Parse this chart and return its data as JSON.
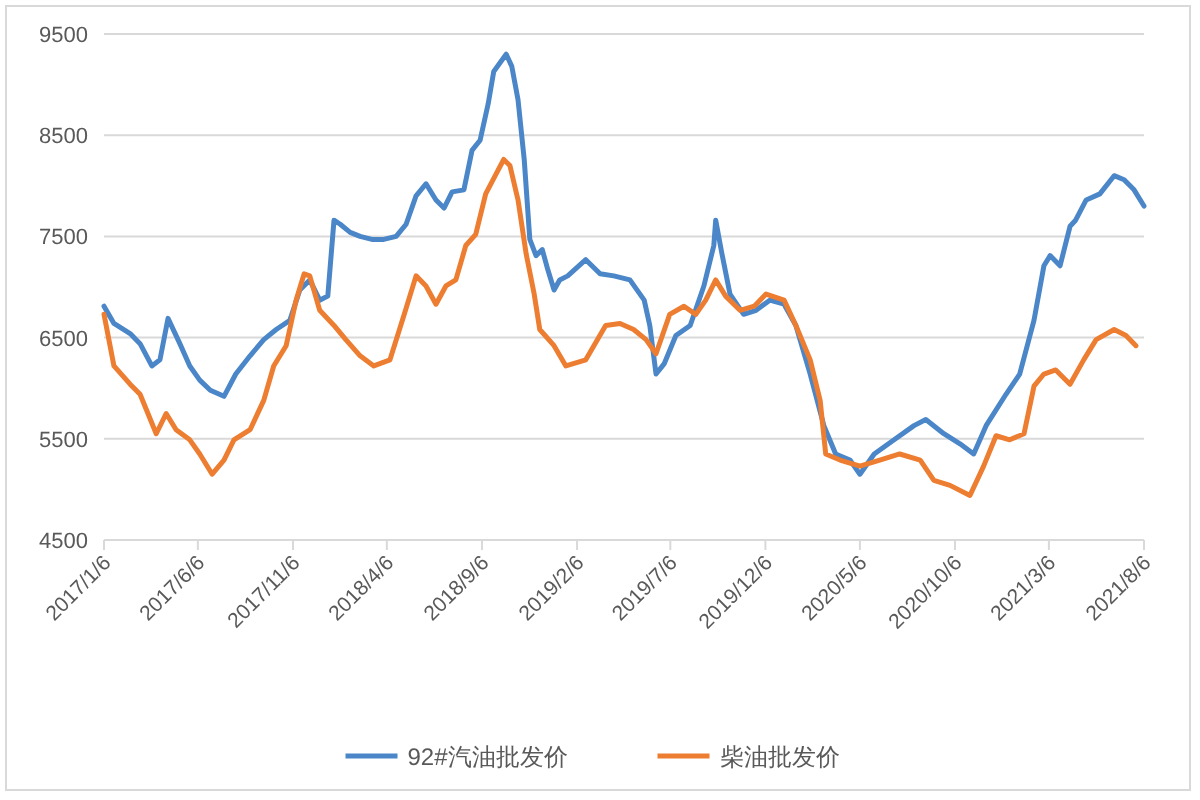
{
  "chart_data": {
    "type": "line",
    "ylim": [
      4500,
      9500
    ],
    "yticks": [
      4500,
      5500,
      6500,
      7500,
      8500,
      9500
    ],
    "xlim": [
      "2017-01-06",
      "2021-08-06"
    ],
    "xticks": [
      {
        "value": "2017-01-06",
        "label": "2017/1/6"
      },
      {
        "value": "2017-06-06",
        "label": "2017/6/6"
      },
      {
        "value": "2017-11-06",
        "label": "2017/11/6"
      },
      {
        "value": "2018-04-06",
        "label": "2018/4/6"
      },
      {
        "value": "2018-09-06",
        "label": "2018/9/6"
      },
      {
        "value": "2019-02-06",
        "label": "2019/2/6"
      },
      {
        "value": "2019-07-06",
        "label": "2019/7/6"
      },
      {
        "value": "2019-12-06",
        "label": "2019/12/6"
      },
      {
        "value": "2020-05-06",
        "label": "2020/5/6"
      },
      {
        "value": "2020-10-06",
        "label": "2020/10/6"
      },
      {
        "value": "2021-03-06",
        "label": "2021/3/6"
      },
      {
        "value": "2021-08-06",
        "label": "2021/8/6"
      }
    ],
    "grid": "y",
    "legend": "bottom",
    "marker": "none",
    "line_style": "solid",
    "series": [
      {
        "name": "92#汽油批发价",
        "color": "#4a86c8",
        "x": [
          "2017-01-06",
          "2017-01-22",
          "2017-02-17",
          "2017-03-05",
          "2017-03-24",
          "2017-04-06",
          "2017-04-19",
          "2017-05-08",
          "2017-05-24",
          "2017-06-09",
          "2017-06-26",
          "2017-07-18",
          "2017-08-06",
          "2017-08-29",
          "2017-09-20",
          "2017-10-10",
          "2017-11-01",
          "2017-11-17",
          "2017-12-03",
          "2017-12-19",
          "2018-01-01",
          "2018-01-11",
          "2018-01-21",
          "2018-02-06",
          "2018-02-22",
          "2018-03-13",
          "2018-04-01",
          "2018-04-21",
          "2018-05-07",
          "2018-05-23",
          "2018-06-08",
          "2018-06-24",
          "2018-07-07",
          "2018-07-20",
          "2018-08-08",
          "2018-08-21",
          "2018-09-03",
          "2018-09-16",
          "2018-09-25",
          "2018-10-08",
          "2018-10-15",
          "2018-10-24",
          "2018-11-03",
          "2018-11-13",
          "2018-11-22",
          "2018-12-02",
          "2018-12-12",
          "2018-12-21",
          "2018-12-31",
          "2019-01-09",
          "2019-01-22",
          "2019-02-20",
          "2019-03-15",
          "2019-04-06",
          "2019-05-02",
          "2019-05-25",
          "2019-06-03",
          "2019-06-13",
          "2019-06-26",
          "2019-07-15",
          "2019-08-07",
          "2019-08-29",
          "2019-09-14",
          "2019-09-17",
          "2019-09-27",
          "2019-10-10",
          "2019-11-01",
          "2019-11-21",
          "2019-12-13",
          "2020-01-05",
          "2020-01-24",
          "2020-02-16",
          "2020-03-09",
          "2020-03-28",
          "2020-04-20",
          "2020-05-06",
          "2020-05-29",
          "2020-06-30",
          "2020-08-01",
          "2020-08-20",
          "2020-09-18",
          "2020-10-14",
          "2020-11-05",
          "2020-11-25",
          "2020-12-27",
          "2021-01-18",
          "2021-02-10",
          "2021-02-26",
          "2021-03-08",
          "2021-03-24",
          "2021-04-09",
          "2021-04-18",
          "2021-05-05",
          "2021-05-27",
          "2021-06-19",
          "2021-07-05",
          "2021-07-21",
          "2021-08-06"
        ],
        "values": [
          6810,
          6640,
          6540,
          6440,
          6220,
          6280,
          6690,
          6440,
          6220,
          6080,
          5980,
          5920,
          6140,
          6320,
          6480,
          6580,
          6670,
          6970,
          7070,
          6870,
          6910,
          7660,
          7620,
          7540,
          7500,
          7470,
          7470,
          7500,
          7620,
          7900,
          8020,
          7860,
          7780,
          7940,
          7960,
          8350,
          8450,
          8810,
          9130,
          9240,
          9300,
          9180,
          8850,
          8260,
          7470,
          7310,
          7370,
          7170,
          6970,
          7070,
          7110,
          7270,
          7130,
          7110,
          7070,
          6870,
          6620,
          6140,
          6240,
          6520,
          6620,
          7010,
          7410,
          7660,
          7330,
          6930,
          6730,
          6770,
          6870,
          6830,
          6620,
          6140,
          5630,
          5350,
          5290,
          5150,
          5350,
          5490,
          5630,
          5690,
          5550,
          5450,
          5350,
          5630,
          5940,
          6140,
          6670,
          7210,
          7310,
          7210,
          7600,
          7660,
          7860,
          7920,
          8100,
          8060,
          7960,
          7800
        ]
      },
      {
        "name": "柴油批发价",
        "color": "#ed7d31",
        "x": [
          "2017-01-06",
          "2017-01-22",
          "2017-02-17",
          "2017-03-05",
          "2017-03-31",
          "2017-04-16",
          "2017-05-02",
          "2017-05-24",
          "2017-06-09",
          "2017-06-29",
          "2017-07-18",
          "2017-08-03",
          "2017-08-29",
          "2017-09-20",
          "2017-10-06",
          "2017-10-26",
          "2017-11-11",
          "2017-11-24",
          "2017-12-03",
          "2017-12-19",
          "2018-01-11",
          "2018-01-30",
          "2018-02-22",
          "2018-03-16",
          "2018-04-11",
          "2018-05-04",
          "2018-05-23",
          "2018-06-08",
          "2018-06-24",
          "2018-07-10",
          "2018-07-26",
          "2018-08-11",
          "2018-08-27",
          "2018-09-12",
          "2018-09-29",
          "2018-10-11",
          "2018-10-21",
          "2018-11-03",
          "2018-11-16",
          "2018-11-29",
          "2018-12-08",
          "2018-12-31",
          "2019-01-19",
          "2019-02-20",
          "2019-03-24",
          "2019-04-16",
          "2019-05-08",
          "2019-05-28",
          "2019-06-13",
          "2019-07-05",
          "2019-07-28",
          "2019-08-16",
          "2019-09-01",
          "2019-09-17",
          "2019-10-03",
          "2019-10-26",
          "2019-11-18",
          "2019-12-07",
          "2020-01-05",
          "2020-01-24",
          "2020-02-16",
          "2020-03-03",
          "2020-03-12",
          "2020-04-04",
          "2020-05-06",
          "2020-06-07",
          "2020-07-09",
          "2020-08-11",
          "2020-09-02",
          "2020-09-28",
          "2020-10-30",
          "2020-11-21",
          "2020-12-11",
          "2021-01-02",
          "2021-01-25",
          "2021-02-10",
          "2021-02-26",
          "2021-03-17",
          "2021-04-09",
          "2021-05-01",
          "2021-05-21",
          "2021-06-19",
          "2021-07-08",
          "2021-07-24"
        ],
        "values": [
          6730,
          6220,
          6040,
          5940,
          5550,
          5750,
          5590,
          5490,
          5350,
          5150,
          5290,
          5490,
          5590,
          5880,
          6220,
          6420,
          6870,
          7130,
          7110,
          6770,
          6620,
          6480,
          6320,
          6220,
          6280,
          6730,
          7110,
          7010,
          6830,
          7010,
          7070,
          7410,
          7520,
          7920,
          8120,
          8260,
          8200,
          7860,
          7330,
          6930,
          6580,
          6420,
          6220,
          6280,
          6620,
          6640,
          6580,
          6480,
          6340,
          6730,
          6810,
          6730,
          6870,
          7070,
          6910,
          6770,
          6810,
          6930,
          6870,
          6620,
          6280,
          5880,
          5350,
          5290,
          5230,
          5290,
          5350,
          5290,
          5090,
          5040,
          4940,
          5230,
          5530,
          5490,
          5550,
          6020,
          6140,
          6180,
          6040,
          6280,
          6480,
          6580,
          6520,
          6420
        ]
      }
    ]
  }
}
